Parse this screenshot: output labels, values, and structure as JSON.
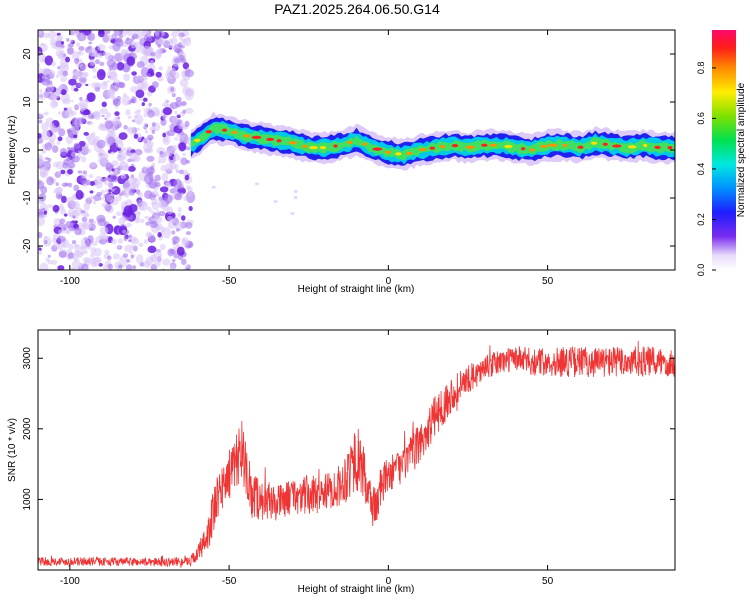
{
  "title": "PAZ1.2025.264.06.50.G14",
  "colors": {
    "snr_line": "#ef3434",
    "axis": "#000000",
    "spec_points": "#6a1fe0",
    "spec_points_light": "#d9c4f7"
  },
  "chart_data": [
    {
      "type": "heatmap",
      "name": "spectrogram",
      "xlabel": "Height of straight line (km)",
      "ylabel": "Frequency (Hz)",
      "xlim": [
        -110,
        90
      ],
      "ylim": [
        -25,
        25
      ],
      "xticks": [
        -100,
        -50,
        0,
        50
      ],
      "yticks": [
        -20,
        -10,
        0,
        10,
        20
      ],
      "noise_region_x": [
        -110,
        -62
      ],
      "track": {
        "x": [
          -62,
          -58,
          -55,
          -50,
          -45,
          -40,
          -35,
          -30,
          -25,
          -20,
          -15,
          -10,
          -5,
          0,
          5,
          10,
          15,
          20,
          25,
          30,
          35,
          40,
          45,
          50,
          55,
          60,
          65,
          70,
          75,
          80,
          85,
          90
        ],
        "freq": [
          1,
          3,
          4.5,
          4,
          3,
          2.5,
          2,
          1.5,
          0.5,
          0.5,
          1,
          2,
          0.5,
          -0.5,
          -1,
          0,
          0.5,
          1,
          0.5,
          1,
          1,
          0.5,
          0,
          1,
          1,
          0.5,
          1.5,
          1,
          0.5,
          1,
          0.5,
          0.5
        ]
      },
      "colorbar": {
        "label": "Normalized spectral amplitude",
        "range": [
          0,
          0.95
        ],
        "ticks": [
          0.0,
          0.2,
          0.4,
          0.6,
          0.8
        ],
        "tick_labels": [
          "0.0",
          "0.2",
          "0.4",
          "0.6",
          "0.8"
        ]
      }
    },
    {
      "type": "line",
      "name": "snr",
      "xlabel": "Height of straight line (km)",
      "ylabel": "SNR (10 * v/v)",
      "xlim": [
        -110,
        90
      ],
      "ylim": [
        0,
        3400
      ],
      "xticks": [
        -100,
        -50,
        0,
        50
      ],
      "yticks": [
        1000,
        2000,
        3000
      ],
      "envelope": {
        "x": [
          -110,
          -90,
          -70,
          -62,
          -58,
          -55,
          -52,
          -48,
          -46,
          -44,
          -40,
          -35,
          -30,
          -25,
          -20,
          -15,
          -12,
          -10,
          -8,
          -6,
          -4,
          -2,
          0,
          5,
          10,
          15,
          20,
          25,
          30,
          35,
          40,
          45,
          50,
          55,
          60,
          65,
          70,
          75,
          80,
          85,
          90
        ],
        "mean": [
          120,
          120,
          110,
          130,
          350,
          800,
          1200,
          1500,
          1800,
          1100,
          1000,
          950,
          1050,
          1050,
          1100,
          1200,
          1450,
          1600,
          1400,
          1000,
          900,
          1200,
          1350,
          1500,
          1800,
          2200,
          2500,
          2700,
          2850,
          2950,
          3000,
          2950,
          2950,
          2950,
          2950,
          2950,
          2950,
          2950,
          2950,
          2950,
          2950
        ],
        "amp": [
          60,
          60,
          60,
          70,
          200,
          350,
          350,
          350,
          500,
          400,
          300,
          250,
          250,
          300,
          250,
          300,
          450,
          500,
          400,
          350,
          350,
          300,
          250,
          250,
          300,
          300,
          250,
          200,
          180,
          180,
          180,
          200,
          200,
          220,
          220,
          220,
          220,
          220,
          220,
          220,
          220
        ]
      }
    }
  ]
}
